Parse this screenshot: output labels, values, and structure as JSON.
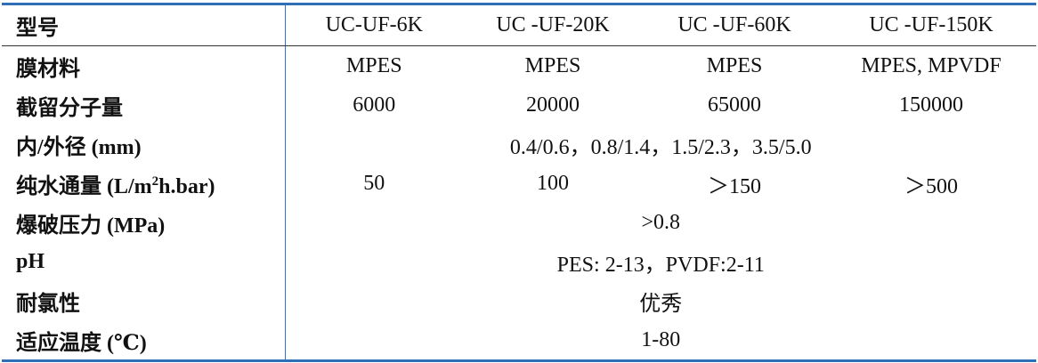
{
  "table": {
    "header": [
      "型号",
      "UC-UF-6K",
      "UC -UF-20K",
      "UC -UF-60K",
      "UC -UF-150K"
    ],
    "rows": [
      {
        "label": [
          "膜材料"
        ],
        "cells": [
          "MPES",
          "MPES",
          "MPES",
          "MPES, MPVDF"
        ]
      },
      {
        "label": [
          "截留分子量"
        ],
        "cells": [
          "6000",
          "20000",
          "65000",
          "150000"
        ]
      },
      {
        "label": [
          "内/外径 (mm)"
        ],
        "cells": [
          "0.4/0.6，0.8/1.4，1.5/2.3，3.5/5.0"
        ]
      },
      {
        "label": [
          "纯水通量 (L/m",
          "2",
          "h.bar)"
        ],
        "cells": [
          "50",
          "100",
          "＞150",
          "＞500"
        ]
      },
      {
        "label": [
          "爆破压力 (MPa)"
        ],
        "cells": [
          ">0.8"
        ]
      },
      {
        "label": [
          "pH"
        ],
        "cells": [
          "PES: 2-13，PVDF:2-11"
        ]
      },
      {
        "label": [
          "耐氯性"
        ],
        "cells": [
          "优秀"
        ]
      },
      {
        "label": [
          "适应温度 (℃)"
        ],
        "cells": [
          "1-80"
        ]
      }
    ]
  }
}
